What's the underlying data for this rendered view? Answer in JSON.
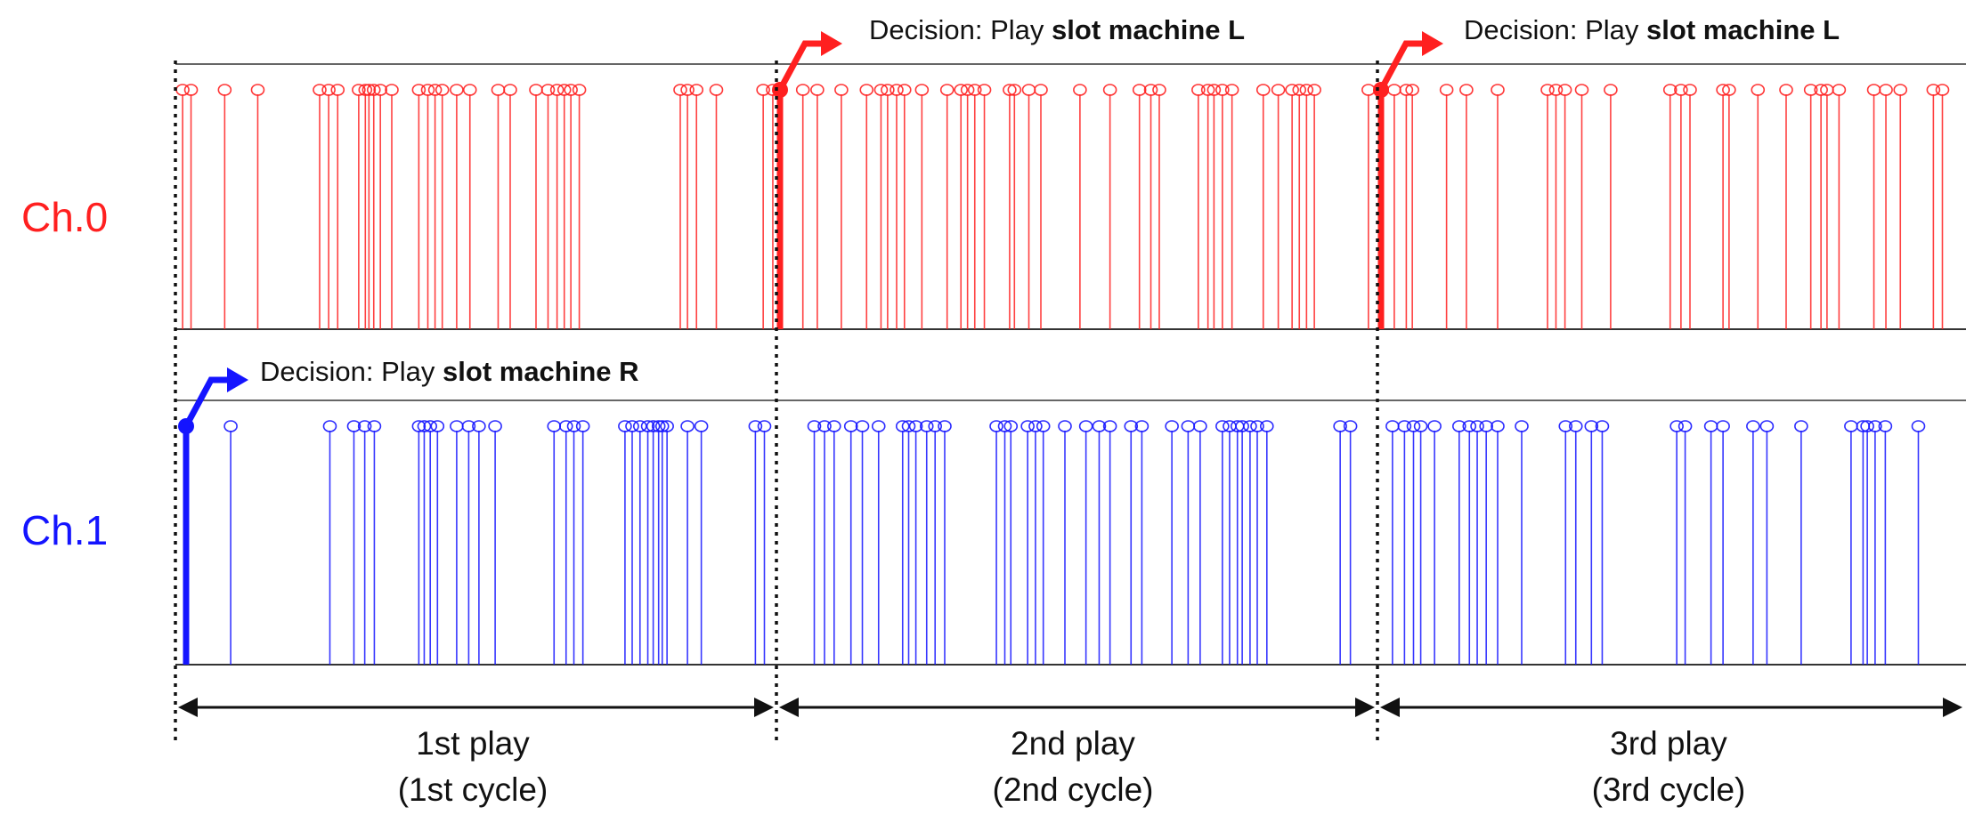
{
  "colors": {
    "ch0": "#ff2020",
    "ch1": "#1414ff",
    "ink": "#111111"
  },
  "channels": [
    {
      "label": "Ch.0",
      "color": "#ff2020"
    },
    {
      "label": "Ch.1",
      "color": "#1414ff"
    }
  ],
  "decisions": [
    {
      "channel": "ch0",
      "cycle": 2,
      "prefix": "Decision: Play ",
      "bold": "slot machine L"
    },
    {
      "channel": "ch0",
      "cycle": 3,
      "prefix": "Decision: Play ",
      "bold": "slot machine L"
    },
    {
      "channel": "ch1",
      "cycle": 1,
      "prefix": "Decision: Play ",
      "bold": "slot machine R"
    }
  ],
  "plays": [
    {
      "line1": "1st play",
      "line2": "(1st cycle)"
    },
    {
      "line1": "2nd play",
      "line2": "(2nd cycle)"
    },
    {
      "line1": "3rd play",
      "line2": "(3rd cycle)"
    }
  ],
  "chart_data": {
    "type": "spike-raster",
    "x_unit": "cycle",
    "xlim": [
      0,
      3
    ],
    "cycle_boundaries": [
      0,
      1,
      2,
      3
    ],
    "series": [
      {
        "name": "Ch.0",
        "color": "#ff2020",
        "spikes": [
          0.012,
          0.026,
          0.082,
          0.137,
          0.24,
          0.255,
          0.27,
          0.305,
          0.316,
          0.322,
          0.33,
          0.341,
          0.36,
          0.405,
          0.42,
          0.432,
          0.444,
          0.468,
          0.49,
          0.537,
          0.557,
          0.6,
          0.62,
          0.635,
          0.647,
          0.658,
          0.672,
          0.84,
          0.852,
          0.867,
          0.9,
          0.978,
          0.994,
          1.044,
          1.068,
          1.108,
          1.15,
          1.174,
          1.185,
          1.2,
          1.213,
          1.242,
          1.284,
          1.307,
          1.318,
          1.33,
          1.346,
          1.388,
          1.396,
          1.42,
          1.44,
          1.505,
          1.555,
          1.604,
          1.623,
          1.637,
          1.702,
          1.718,
          1.728,
          1.742,
          1.758,
          1.81,
          1.835,
          1.858,
          1.87,
          1.882,
          1.895,
          1.985,
          2.028,
          2.048,
          2.058,
          2.115,
          2.148,
          2.2,
          2.283,
          2.297,
          2.312,
          2.34,
          2.388,
          2.487,
          2.505,
          2.52,
          2.575,
          2.585,
          2.633,
          2.68,
          2.721,
          2.738,
          2.748,
          2.768,
          2.826,
          2.846,
          2.87,
          2.925,
          2.94
        ]
      },
      {
        "name": "Ch.1",
        "color": "#1414ff",
        "spikes": [
          0.092,
          0.257,
          0.297,
          0.315,
          0.331,
          0.405,
          0.414,
          0.424,
          0.436,
          0.468,
          0.488,
          0.505,
          0.532,
          0.63,
          0.65,
          0.663,
          0.678,
          0.748,
          0.76,
          0.773,
          0.786,
          0.795,
          0.804,
          0.81,
          0.818,
          0.852,
          0.875,
          0.965,
          0.98,
          1.063,
          1.08,
          1.096,
          1.124,
          1.143,
          1.17,
          1.21,
          1.22,
          1.232,
          1.25,
          1.264,
          1.28,
          1.366,
          1.38,
          1.39,
          1.418,
          1.431,
          1.444,
          1.48,
          1.515,
          1.537,
          1.555,
          1.59,
          1.608,
          1.658,
          1.685,
          1.705,
          1.742,
          1.754,
          1.767,
          1.775,
          1.788,
          1.8,
          1.816,
          1.938,
          1.955,
          2.025,
          2.045,
          2.06,
          2.072,
          2.095,
          2.136,
          2.153,
          2.166,
          2.181,
          2.2,
          2.24,
          2.313,
          2.33,
          2.356,
          2.374,
          2.498,
          2.512,
          2.555,
          2.575,
          2.625,
          2.648,
          2.705,
          2.788,
          2.808,
          2.815,
          2.828,
          2.845,
          2.9
        ]
      }
    ],
    "decision_spikes": [
      {
        "series": "Ch.1",
        "x": 0.0
      },
      {
        "series": "Ch.0",
        "x": 1.0
      },
      {
        "series": "Ch.0",
        "x": 2.0
      }
    ]
  }
}
